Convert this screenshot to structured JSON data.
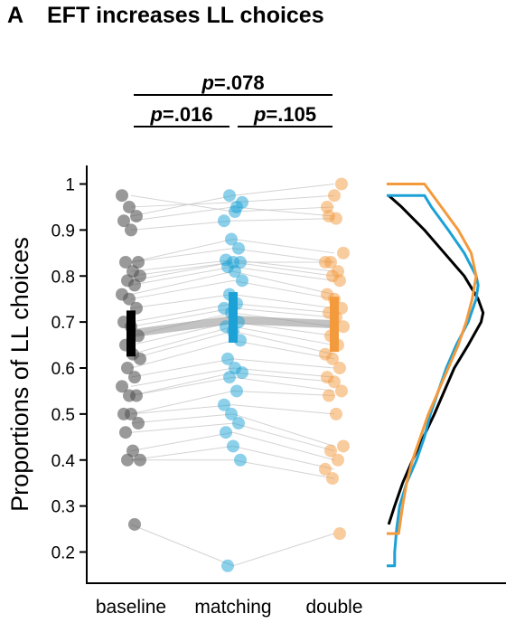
{
  "panel": {
    "letter": "A",
    "title": "EFT increases LL choices"
  },
  "comparisons": [
    {
      "from": "baseline",
      "to": "double",
      "label_p": "p",
      "label_val": "=.078"
    },
    {
      "from": "baseline",
      "to": "matching",
      "label_p": "p",
      "label_val": "=.016"
    },
    {
      "from": "matching",
      "to": "double",
      "label_p": "p",
      "label_val": "=.105"
    }
  ],
  "chart_data": {
    "type": "scatter",
    "title": "EFT increases LL choices",
    "xlabel": "",
    "ylabel": "Proportions of LL choices",
    "categories": [
      "baseline",
      "matching",
      "double"
    ],
    "ylim": [
      0.15,
      1.04
    ],
    "yticks": [
      0.2,
      0.3,
      0.4,
      0.5,
      0.6,
      0.7,
      0.8,
      0.9,
      1.0
    ],
    "ytick_labels": [
      "0.2",
      "0.3",
      "0.4",
      "0.5",
      "0.6",
      "0.7",
      "0.8",
      "0.9",
      "1"
    ],
    "grid": false,
    "colors": {
      "baseline": "#000000",
      "matching": "#1ba1d6",
      "double": "#f39a3d"
    },
    "means": {
      "baseline": 0.675,
      "matching": 0.705,
      "double": 0.695
    },
    "ci": {
      "baseline": [
        0.625,
        0.725
      ],
      "matching": [
        0.655,
        0.765
      ],
      "double": [
        0.635,
        0.755
      ]
    },
    "participants": [
      [
        0.975,
        0.94,
        0.95
      ],
      [
        0.95,
        0.96,
        0.975
      ],
      [
        0.93,
        0.975,
        1.0
      ],
      [
        0.92,
        0.95,
        0.93
      ],
      [
        0.9,
        0.92,
        0.925
      ],
      [
        0.83,
        0.88,
        0.85
      ],
      [
        0.83,
        0.86,
        0.83
      ],
      [
        0.81,
        0.835,
        0.81
      ],
      [
        0.8,
        0.83,
        0.83
      ],
      [
        0.79,
        0.83,
        0.8
      ],
      [
        0.78,
        0.82,
        0.79
      ],
      [
        0.76,
        0.81,
        0.76
      ],
      [
        0.75,
        0.79,
        0.75
      ],
      [
        0.73,
        0.76,
        0.73
      ],
      [
        0.7,
        0.74,
        0.72
      ],
      [
        0.69,
        0.73,
        0.71
      ],
      [
        0.67,
        0.72,
        0.69
      ],
      [
        0.65,
        0.7,
        0.67
      ],
      [
        0.63,
        0.69,
        0.65
      ],
      [
        0.62,
        0.68,
        0.63
      ],
      [
        0.6,
        0.66,
        0.62
      ],
      [
        0.58,
        0.62,
        0.6
      ],
      [
        0.56,
        0.6,
        0.58
      ],
      [
        0.54,
        0.59,
        0.57
      ],
      [
        0.54,
        0.58,
        0.55
      ],
      [
        0.5,
        0.55,
        0.54
      ],
      [
        0.5,
        0.52,
        0.5
      ],
      [
        0.48,
        0.5,
        0.43
      ],
      [
        0.46,
        0.48,
        0.42
      ],
      [
        0.42,
        0.46,
        0.4
      ],
      [
        0.4,
        0.43,
        0.38
      ],
      [
        0.4,
        0.4,
        0.36
      ],
      [
        0.26,
        0.17,
        0.24
      ]
    ],
    "density": {
      "baseline": [
        [
          0.26,
          0.02
        ],
        [
          0.3,
          0.08
        ],
        [
          0.35,
          0.16
        ],
        [
          0.4,
          0.26
        ],
        [
          0.45,
          0.37
        ],
        [
          0.5,
          0.48
        ],
        [
          0.55,
          0.58
        ],
        [
          0.6,
          0.68
        ],
        [
          0.65,
          0.82
        ],
        [
          0.7,
          0.95
        ],
        [
          0.72,
          0.97
        ],
        [
          0.75,
          0.92
        ],
        [
          0.8,
          0.78
        ],
        [
          0.85,
          0.58
        ],
        [
          0.9,
          0.38
        ],
        [
          0.95,
          0.15
        ],
        [
          0.975,
          0.02
        ]
      ],
      "matching": [
        [
          0.17,
          0.0
        ],
        [
          0.17,
          0.08
        ],
        [
          0.2,
          0.08
        ],
        [
          0.25,
          0.1
        ],
        [
          0.3,
          0.13
        ],
        [
          0.35,
          0.2
        ],
        [
          0.4,
          0.3
        ],
        [
          0.45,
          0.38
        ],
        [
          0.5,
          0.44
        ],
        [
          0.55,
          0.52
        ],
        [
          0.6,
          0.6
        ],
        [
          0.65,
          0.7
        ],
        [
          0.7,
          0.82
        ],
        [
          0.75,
          0.9
        ],
        [
          0.78,
          0.92
        ],
        [
          0.8,
          0.9
        ],
        [
          0.85,
          0.78
        ],
        [
          0.9,
          0.62
        ],
        [
          0.95,
          0.45
        ],
        [
          0.975,
          0.38
        ],
        [
          0.975,
          0.0
        ]
      ],
      "double": [
        [
          0.24,
          0.0
        ],
        [
          0.24,
          0.12
        ],
        [
          0.3,
          0.16
        ],
        [
          0.35,
          0.2
        ],
        [
          0.4,
          0.26
        ],
        [
          0.45,
          0.34
        ],
        [
          0.5,
          0.42
        ],
        [
          0.55,
          0.52
        ],
        [
          0.6,
          0.62
        ],
        [
          0.65,
          0.72
        ],
        [
          0.7,
          0.8
        ],
        [
          0.75,
          0.86
        ],
        [
          0.8,
          0.9
        ],
        [
          0.85,
          0.85
        ],
        [
          0.9,
          0.72
        ],
        [
          0.95,
          0.55
        ],
        [
          1.0,
          0.38
        ],
        [
          1.0,
          0.0
        ]
      ]
    }
  }
}
